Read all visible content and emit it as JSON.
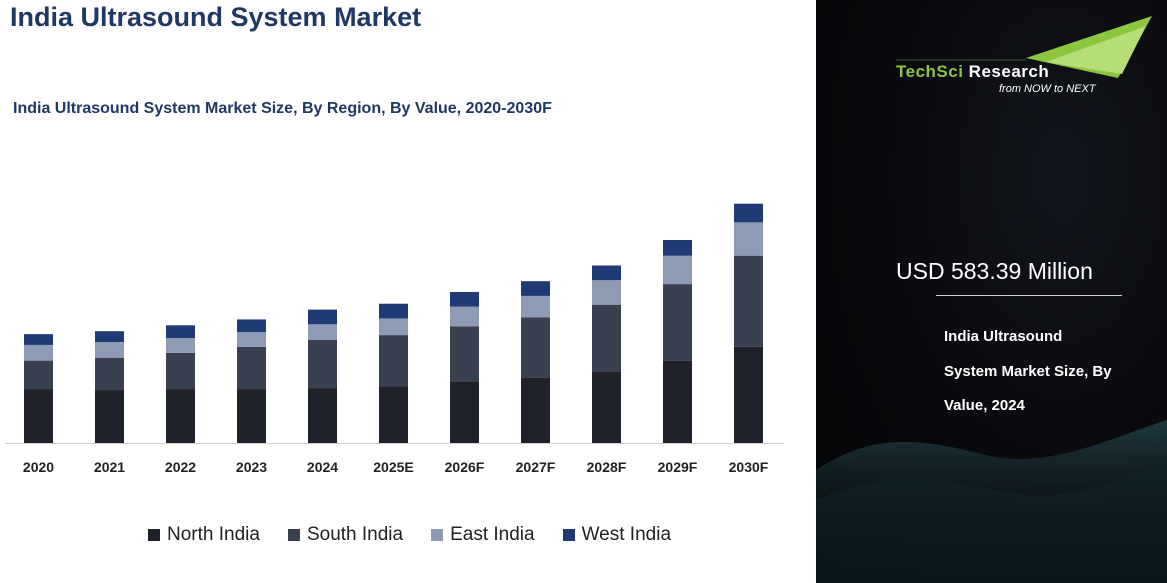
{
  "title": "India Ultrasound System Market",
  "colors": {
    "north": "#1f222b",
    "south": "#39404f",
    "east": "#8d9bb4",
    "west": "#203a76",
    "title": "#1f3864",
    "brand_green": "#8cc63f"
  },
  "chart_data": {
    "type": "bar",
    "stacked": true,
    "title": "India Ultrasound System Market Size, By Region, By Value, 2020-2030F",
    "xlabel": "",
    "ylabel": "",
    "categories": [
      "2020",
      "2021",
      "2022",
      "2023",
      "2024",
      "2025E",
      "2026F",
      "2027F",
      "2028F",
      "2029F",
      "2030F"
    ],
    "series": [
      {
        "name": "North India",
        "color": "#1f222b",
        "values": [
          55,
          54,
          55,
          55,
          56,
          58,
          63,
          67,
          73,
          84,
          98
        ]
      },
      {
        "name": "South India",
        "color": "#39404f",
        "values": [
          29,
          33,
          37,
          43,
          49,
          52,
          56,
          61,
          68,
          78,
          93
        ]
      },
      {
        "name": "East India",
        "color": "#8d9bb4",
        "values": [
          16,
          16,
          15,
          15,
          16,
          17,
          20,
          22,
          25,
          29,
          34
        ]
      },
      {
        "name": "West India",
        "color": "#203a76",
        "values": [
          11,
          11,
          13,
          13,
          15,
          15,
          15,
          15,
          15,
          16,
          19
        ]
      }
    ],
    "ylim": [
      0,
      260
    ],
    "grid": false,
    "legend_position": "bottom"
  },
  "sidebar": {
    "brand_tech": "TechSci",
    "brand_research": "Research",
    "tagline": "from NOW to NEXT",
    "stat_value": "USD 583.39 Million",
    "stat_desc_line1": "India Ultrasound",
    "stat_desc_line2": "System Market Size, By",
    "stat_desc_line3": "Value, 2024"
  }
}
